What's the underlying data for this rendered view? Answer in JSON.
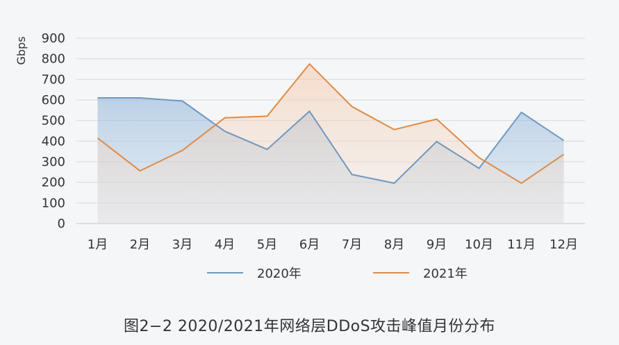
{
  "chart_data": {
    "type": "area",
    "categories": [
      "1月",
      "2月",
      "3月",
      "4月",
      "5月",
      "6月",
      "7月",
      "8月",
      "9月",
      "10月",
      "11月",
      "12月"
    ],
    "series": [
      {
        "name": "2020年",
        "values": [
          610,
          610,
          595,
          448,
          360,
          545,
          238,
          196,
          398,
          268,
          540,
          403
        ],
        "color": "#6f98bf"
      },
      {
        "name": "2021年",
        "values": [
          415,
          256,
          355,
          513,
          521,
          775,
          568,
          456,
          507,
          320,
          196,
          336
        ],
        "color": "#e08a45"
      }
    ],
    "ylabel": "Gbps",
    "ylim": [
      0,
      900
    ],
    "yticks": [
      0,
      100,
      200,
      300,
      400,
      500,
      600,
      700,
      800,
      900
    ],
    "grid": true,
    "legend": "bottom"
  },
  "caption": "图2−2  2020/2021年网络层DDoS攻击峰值月份分布"
}
